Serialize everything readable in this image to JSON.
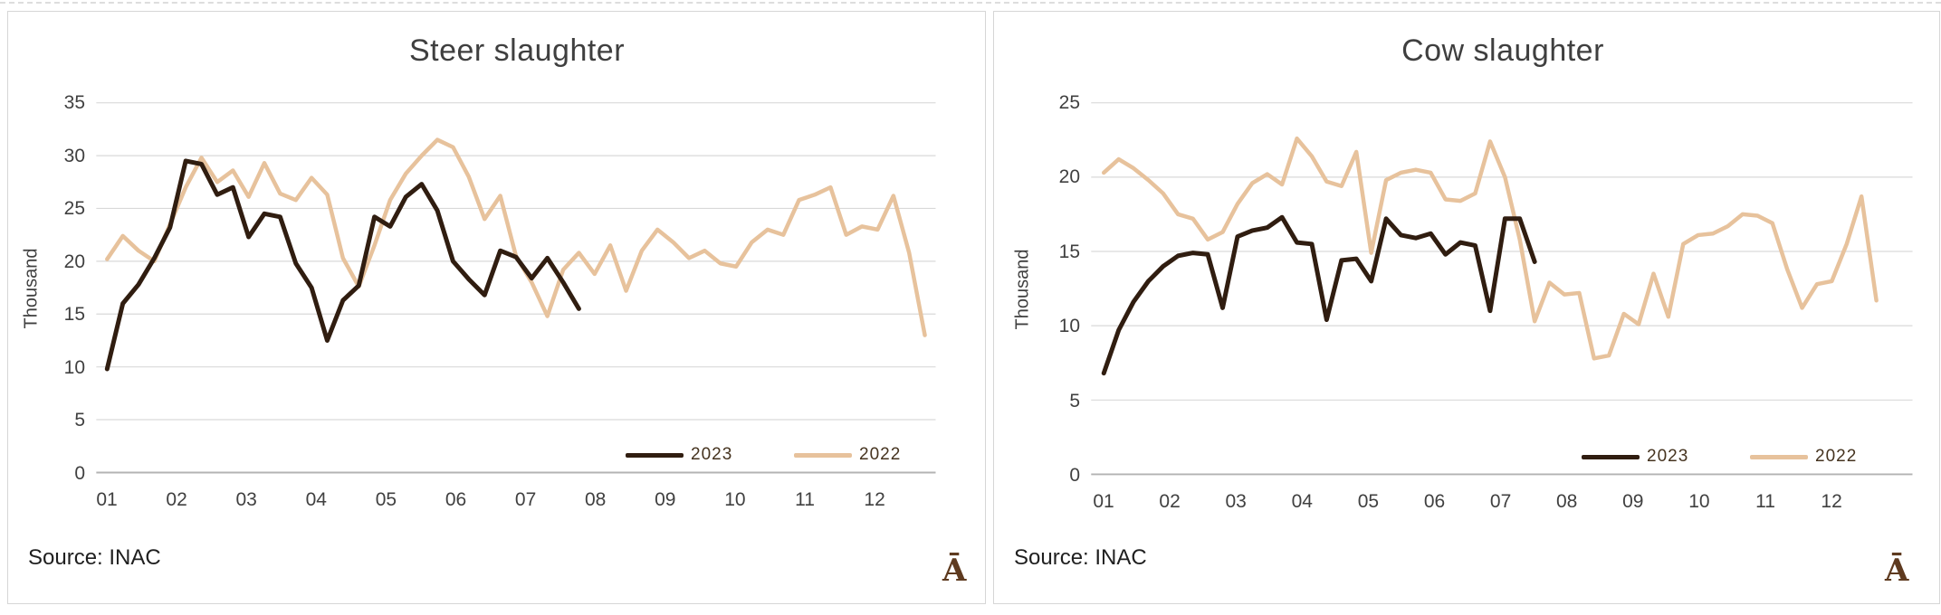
{
  "colors": {
    "panel_border": "#d6d6d6",
    "grid": "#d9d9d9",
    "axis": "#b3b3b3",
    "title_text": "#3f3f3f",
    "tick_text": "#404040",
    "logo_brown": "#5e3a1f",
    "series_2023": "#301d10",
    "series_2022": "#e7c29c"
  },
  "chart_data": [
    {
      "key": "steer",
      "type": "line",
      "title": "Steer slaughter",
      "y_axis_label": "Thousand",
      "source": "Source: INAC",
      "logo_glyph": "Ā",
      "ylim": [
        0,
        35
      ],
      "y_ticks": [
        0,
        5,
        10,
        15,
        20,
        25,
        30,
        35
      ],
      "x_tick_labels": [
        "01",
        "02",
        "03",
        "04",
        "05",
        "06",
        "07",
        "08",
        "09",
        "10",
        "11",
        "12"
      ],
      "x_unit": "weeks of year, labeled by month",
      "grid": true,
      "legend_position": "inside-bottom-right",
      "series": [
        {
          "name": "2023",
          "color": "#301d10",
          "stroke_width": 5,
          "values": [
            9.8,
            16.0,
            17.8,
            20.3,
            23.2,
            29.5,
            29.2,
            26.3,
            27.0,
            22.3,
            24.5,
            24.2,
            19.8,
            17.5,
            12.5,
            16.3,
            17.7,
            24.2,
            23.3,
            26.1,
            27.3,
            24.8,
            20.0,
            18.3,
            16.8,
            21.0,
            20.4,
            18.4,
            20.3,
            18.0,
            15.5
          ]
        },
        {
          "name": "2022",
          "color": "#e7c29c",
          "stroke_width": 4.5,
          "values": [
            20.2,
            22.4,
            21.0,
            20.0,
            23.5,
            27.0,
            29.8,
            27.5,
            28.6,
            26.1,
            29.3,
            26.4,
            25.8,
            27.9,
            26.3,
            20.3,
            17.6,
            21.5,
            25.8,
            28.3,
            30.0,
            31.5,
            30.8,
            28.0,
            24.0,
            26.2,
            20.5,
            18.0,
            14.8,
            19.2,
            20.8,
            18.8,
            21.5,
            17.2,
            21.0,
            23.0,
            21.8,
            20.3,
            21.0,
            19.8,
            19.5,
            21.8,
            23.0,
            22.5,
            25.8,
            26.3,
            27.0,
            22.5,
            23.3,
            23.0,
            26.2,
            20.8,
            13.0
          ]
        }
      ]
    },
    {
      "key": "cow",
      "type": "line",
      "title": "Cow slaughter",
      "y_axis_label": "Thousand",
      "source": "Source: INAC",
      "logo_glyph": "Ā",
      "ylim": [
        0,
        25
      ],
      "y_ticks": [
        0,
        5,
        10,
        15,
        20,
        25
      ],
      "x_tick_labels": [
        "01",
        "02",
        "03",
        "04",
        "05",
        "06",
        "07",
        "08",
        "09",
        "10",
        "11",
        "12"
      ],
      "x_unit": "weeks of year, labeled by month",
      "grid": true,
      "legend_position": "inside-bottom-right",
      "series": [
        {
          "name": "2023",
          "color": "#301d10",
          "stroke_width": 5,
          "values": [
            6.8,
            9.7,
            11.6,
            13.0,
            14.0,
            14.7,
            14.9,
            14.8,
            11.2,
            16.0,
            16.4,
            16.6,
            17.3,
            15.6,
            15.5,
            10.4,
            14.4,
            14.5,
            13.0,
            17.2,
            16.1,
            15.9,
            16.2,
            14.8,
            15.6,
            15.4,
            11.0,
            17.2,
            17.2,
            14.3
          ]
        },
        {
          "name": "2022",
          "color": "#e7c29c",
          "stroke_width": 4.5,
          "values": [
            20.3,
            21.2,
            20.6,
            19.8,
            18.9,
            17.5,
            17.2,
            15.8,
            16.3,
            18.2,
            19.6,
            20.2,
            19.5,
            22.6,
            21.4,
            19.7,
            19.4,
            21.7,
            14.9,
            19.8,
            20.3,
            20.5,
            20.3,
            18.5,
            18.4,
            18.9,
            22.4,
            20.0,
            15.8,
            10.3,
            12.9,
            12.1,
            12.2,
            7.8,
            8.0,
            10.8,
            10.1,
            13.5,
            10.6,
            15.5,
            16.1,
            16.2,
            16.7,
            17.5,
            17.4,
            16.9,
            13.8,
            11.2,
            12.8,
            13.0,
            15.5,
            18.7,
            11.7
          ]
        }
      ]
    }
  ]
}
